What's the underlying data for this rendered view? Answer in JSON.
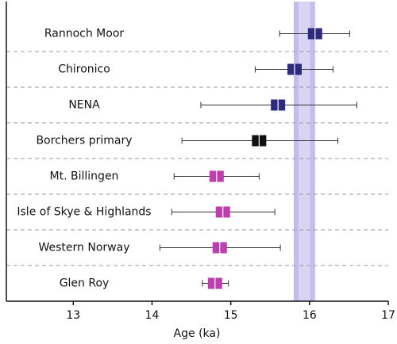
{
  "chart_data": {
    "type": "errorbar",
    "x_label": "Age (ka)",
    "categories": [
      "Rannoch Moor",
      "Chironico",
      "NENA",
      "Borchers primary",
      "Mt. Billingen",
      "Isle of Skye & Highlands",
      "Western Norway",
      "Glen Roy"
    ],
    "values": [
      16.07,
      15.81,
      15.6,
      15.36,
      14.82,
      14.9,
      14.86,
      14.8
    ],
    "low": [
      15.62,
      15.31,
      14.62,
      14.38,
      14.28,
      14.25,
      14.1,
      14.64
    ],
    "high": [
      16.51,
      16.3,
      16.6,
      16.36,
      15.36,
      15.56,
      15.63,
      14.97
    ],
    "colors": [
      "#2e2a80",
      "#2e2a80",
      "#2e2a80",
      "#111111",
      "#c03cb0",
      "#c03cb0",
      "#c03cb0",
      "#c03cb0"
    ],
    "band": {
      "low": 15.8,
      "high": 16.07,
      "color": "#8f86e0"
    },
    "xlim": [
      12.15,
      17
    ],
    "xticks": [
      13,
      14,
      15,
      16,
      17
    ]
  }
}
